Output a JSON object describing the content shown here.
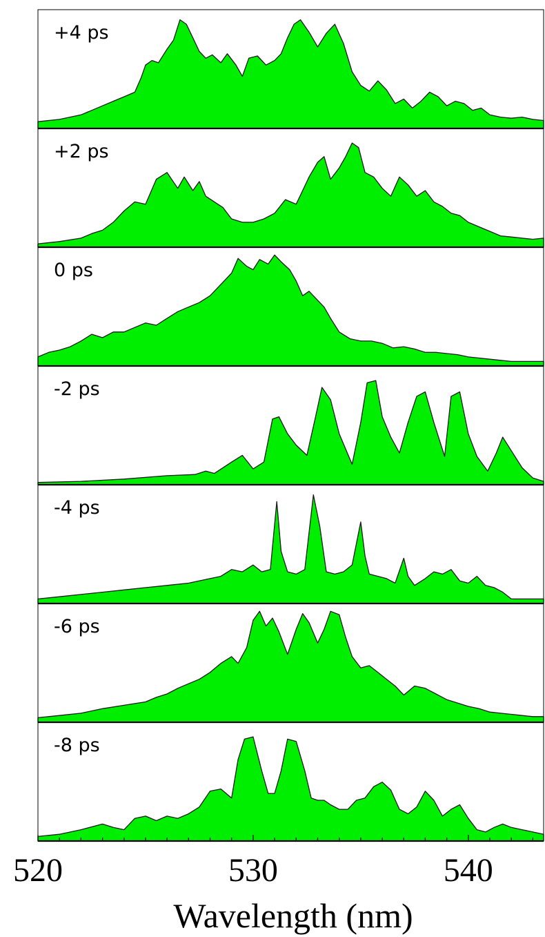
{
  "colors": {
    "fill": "#00ee00",
    "line": "#1a1a1a",
    "frame": "#000000"
  },
  "chart_data": {
    "type": "area",
    "xlabel": "Wavelength (nm)",
    "xlim": [
      520,
      543.5
    ],
    "xticks": [
      520,
      530,
      540
    ],
    "grid": false,
    "ylim": [
      0,
      1
    ],
    "series": [
      {
        "name": "+4 ps",
        "x": [
          520,
          521,
          522,
          522.5,
          523,
          523.5,
          524,
          524.5,
          524.8,
          525,
          525.3,
          525.6,
          526,
          526.3,
          526.6,
          526.9,
          527.2,
          527.5,
          527.8,
          528.1,
          528.5,
          528.8,
          529.2,
          529.5,
          529.8,
          530.2,
          530.6,
          531,
          531.3,
          531.6,
          531.9,
          532.2,
          532.6,
          533,
          533.4,
          533.8,
          534.2,
          534.6,
          535,
          535.4,
          535.8,
          536.2,
          536.6,
          537,
          537.4,
          537.8,
          538.2,
          538.6,
          539,
          539.4,
          539.8,
          540.2,
          540.6,
          541,
          541.5,
          542,
          542.5,
          543,
          543.5
        ],
        "y": [
          0.06,
          0.08,
          0.12,
          0.16,
          0.2,
          0.24,
          0.28,
          0.32,
          0.45,
          0.56,
          0.6,
          0.58,
          0.7,
          0.78,
          0.96,
          0.92,
          0.8,
          0.68,
          0.62,
          0.65,
          0.58,
          0.66,
          0.56,
          0.46,
          0.62,
          0.64,
          0.56,
          0.6,
          0.66,
          0.8,
          0.92,
          0.96,
          0.85,
          0.72,
          0.84,
          0.92,
          0.75,
          0.5,
          0.38,
          0.33,
          0.42,
          0.34,
          0.22,
          0.26,
          0.18,
          0.24,
          0.32,
          0.28,
          0.2,
          0.24,
          0.22,
          0.16,
          0.18,
          0.12,
          0.1,
          0.09,
          0.1,
          0.08,
          0.07
        ]
      },
      {
        "name": "+2 ps",
        "x": [
          520,
          521,
          522,
          522.5,
          523,
          523.5,
          524,
          524.5,
          525,
          525.5,
          526,
          526.5,
          526.8,
          527.2,
          527.5,
          527.8,
          528.2,
          528.6,
          529,
          529.5,
          530,
          530.5,
          531,
          531.5,
          532,
          532.3,
          532.6,
          533,
          533.3,
          533.6,
          534,
          534.3,
          534.6,
          534.9,
          535.2,
          535.6,
          536,
          536.4,
          536.8,
          537.2,
          537.6,
          538,
          538.4,
          538.8,
          539.2,
          539.6,
          540,
          540.5,
          541,
          541.5,
          542,
          542.5,
          543,
          543.5
        ],
        "y": [
          0.03,
          0.05,
          0.08,
          0.12,
          0.15,
          0.22,
          0.32,
          0.4,
          0.38,
          0.6,
          0.66,
          0.52,
          0.62,
          0.5,
          0.58,
          0.45,
          0.4,
          0.35,
          0.25,
          0.22,
          0.22,
          0.25,
          0.3,
          0.42,
          0.38,
          0.5,
          0.62,
          0.75,
          0.8,
          0.6,
          0.7,
          0.8,
          0.92,
          0.88,
          0.66,
          0.62,
          0.52,
          0.45,
          0.62,
          0.55,
          0.45,
          0.5,
          0.4,
          0.36,
          0.3,
          0.28,
          0.22,
          0.18,
          0.14,
          0.1,
          0.09,
          0.08,
          0.07,
          0.08
        ]
      },
      {
        "name": "0 ps",
        "x": [
          520,
          520.5,
          521,
          521.5,
          522,
          522.5,
          523,
          523.5,
          524,
          524.5,
          525,
          525.5,
          526,
          526.5,
          527,
          527.5,
          528,
          528.5,
          529,
          529.3,
          529.7,
          530,
          530.3,
          530.7,
          531,
          531.3,
          531.7,
          532,
          532.3,
          532.6,
          533,
          533.3,
          533.6,
          534,
          534.5,
          535,
          535.5,
          536,
          536.5,
          537,
          537.5,
          538,
          538.5,
          539,
          539.5,
          540,
          540.5,
          541,
          541.5,
          542,
          542.5,
          543,
          543.5
        ],
        "y": [
          0.08,
          0.12,
          0.14,
          0.17,
          0.22,
          0.28,
          0.25,
          0.3,
          0.3,
          0.34,
          0.38,
          0.36,
          0.42,
          0.48,
          0.52,
          0.56,
          0.62,
          0.72,
          0.82,
          0.95,
          0.88,
          0.85,
          0.94,
          0.9,
          0.98,
          0.92,
          0.85,
          0.75,
          0.62,
          0.66,
          0.58,
          0.52,
          0.42,
          0.3,
          0.24,
          0.22,
          0.22,
          0.2,
          0.16,
          0.17,
          0.15,
          0.12,
          0.12,
          0.11,
          0.1,
          0.08,
          0.07,
          0.06,
          0.05,
          0.04,
          0.04,
          0.04,
          0.04
        ]
      },
      {
        "name": "-2 ps",
        "x": [
          520,
          522,
          524,
          526,
          527.3,
          527.8,
          528.2,
          529,
          529.5,
          530,
          530.5,
          530.9,
          531.2,
          531.6,
          532,
          532.5,
          532.9,
          533.2,
          533.6,
          534,
          534.6,
          535,
          535.3,
          535.7,
          536,
          536.4,
          536.8,
          537.2,
          537.6,
          538,
          538.4,
          538.9,
          539.2,
          539.6,
          540,
          540.4,
          540.9,
          541.3,
          541.6,
          542,
          542.5,
          543,
          543.5
        ],
        "y": [
          0.02,
          0.03,
          0.05,
          0.08,
          0.09,
          0.12,
          0.1,
          0.2,
          0.26,
          0.14,
          0.2,
          0.58,
          0.6,
          0.45,
          0.35,
          0.26,
          0.6,
          0.86,
          0.75,
          0.45,
          0.18,
          0.55,
          0.9,
          0.92,
          0.6,
          0.42,
          0.28,
          0.55,
          0.78,
          0.82,
          0.55,
          0.25,
          0.78,
          0.82,
          0.45,
          0.25,
          0.12,
          0.28,
          0.42,
          0.3,
          0.15,
          0.06,
          0.03
        ]
      },
      {
        "name": "-4 ps",
        "x": [
          520,
          521,
          522,
          523,
          524,
          525,
          526,
          527,
          528,
          528.5,
          529,
          529.5,
          530,
          530.4,
          530.8,
          531.1,
          531.3,
          531.6,
          532,
          532.4,
          532.8,
          533.1,
          533.4,
          533.8,
          534.2,
          534.6,
          535,
          535.2,
          535.4,
          535.8,
          536.2,
          536.6,
          537,
          537.2,
          537.5,
          538,
          538.4,
          538.8,
          539.2,
          539.6,
          540,
          540.4,
          540.8,
          541.2,
          541.6,
          542,
          542.5,
          543,
          543.5
        ],
        "y": [
          0.04,
          0.06,
          0.08,
          0.1,
          0.12,
          0.14,
          0.16,
          0.18,
          0.22,
          0.24,
          0.3,
          0.28,
          0.34,
          0.28,
          0.3,
          0.9,
          0.46,
          0.28,
          0.26,
          0.3,
          0.96,
          0.68,
          0.28,
          0.26,
          0.28,
          0.34,
          0.72,
          0.42,
          0.26,
          0.24,
          0.22,
          0.18,
          0.4,
          0.24,
          0.16,
          0.22,
          0.28,
          0.26,
          0.3,
          0.2,
          0.18,
          0.24,
          0.16,
          0.14,
          0.1,
          0.04,
          0.04,
          0.04,
          0.04
        ]
      },
      {
        "name": "-6 ps",
        "x": [
          520,
          521,
          522,
          523,
          524,
          525,
          525.5,
          526,
          526.5,
          527,
          527.5,
          528,
          528.5,
          529,
          529.3,
          529.7,
          530,
          530.3,
          530.6,
          530.9,
          531.2,
          531.6,
          532,
          532.3,
          532.6,
          533,
          533.3,
          533.6,
          534,
          534.3,
          534.6,
          535,
          535.4,
          535.8,
          536.2,
          536.6,
          537,
          537.5,
          538,
          538.5,
          539,
          539.5,
          540,
          540.5,
          541,
          541.5,
          542,
          542.5,
          543,
          543.5
        ],
        "y": [
          0.04,
          0.06,
          0.08,
          0.12,
          0.15,
          0.18,
          0.22,
          0.25,
          0.3,
          0.34,
          0.38,
          0.44,
          0.52,
          0.58,
          0.52,
          0.66,
          0.9,
          0.98,
          0.85,
          0.92,
          0.8,
          0.6,
          0.82,
          0.96,
          0.88,
          0.7,
          0.82,
          0.98,
          0.95,
          0.75,
          0.58,
          0.48,
          0.5,
          0.44,
          0.38,
          0.32,
          0.24,
          0.32,
          0.3,
          0.25,
          0.2,
          0.17,
          0.14,
          0.12,
          0.09,
          0.08,
          0.07,
          0.06,
          0.05,
          0.05
        ]
      },
      {
        "name": "-8 ps",
        "x": [
          520,
          521,
          522,
          523,
          523.5,
          524,
          524.5,
          525,
          525.5,
          526,
          526.5,
          527,
          527.5,
          528,
          528.5,
          529,
          529.3,
          529.6,
          530,
          530.4,
          530.7,
          531,
          531.3,
          531.6,
          532,
          532.4,
          532.7,
          533,
          533.3,
          533.6,
          534,
          534.4,
          534.8,
          535.2,
          535.6,
          536,
          536.4,
          536.8,
          537.2,
          537.6,
          538,
          538.4,
          538.8,
          539.2,
          539.6,
          540,
          540.4,
          540.8,
          541.2,
          541.6,
          542,
          542.5,
          543,
          543.5
        ],
        "y": [
          0.04,
          0.06,
          0.1,
          0.15,
          0.12,
          0.1,
          0.2,
          0.22,
          0.18,
          0.22,
          0.2,
          0.24,
          0.3,
          0.44,
          0.46,
          0.38,
          0.72,
          0.9,
          0.92,
          0.62,
          0.42,
          0.42,
          0.62,
          0.9,
          0.88,
          0.62,
          0.38,
          0.36,
          0.36,
          0.32,
          0.28,
          0.28,
          0.36,
          0.38,
          0.48,
          0.52,
          0.45,
          0.28,
          0.24,
          0.3,
          0.44,
          0.36,
          0.22,
          0.28,
          0.32,
          0.2,
          0.1,
          0.08,
          0.12,
          0.15,
          0.12,
          0.1,
          0.08,
          0.06
        ]
      }
    ]
  }
}
